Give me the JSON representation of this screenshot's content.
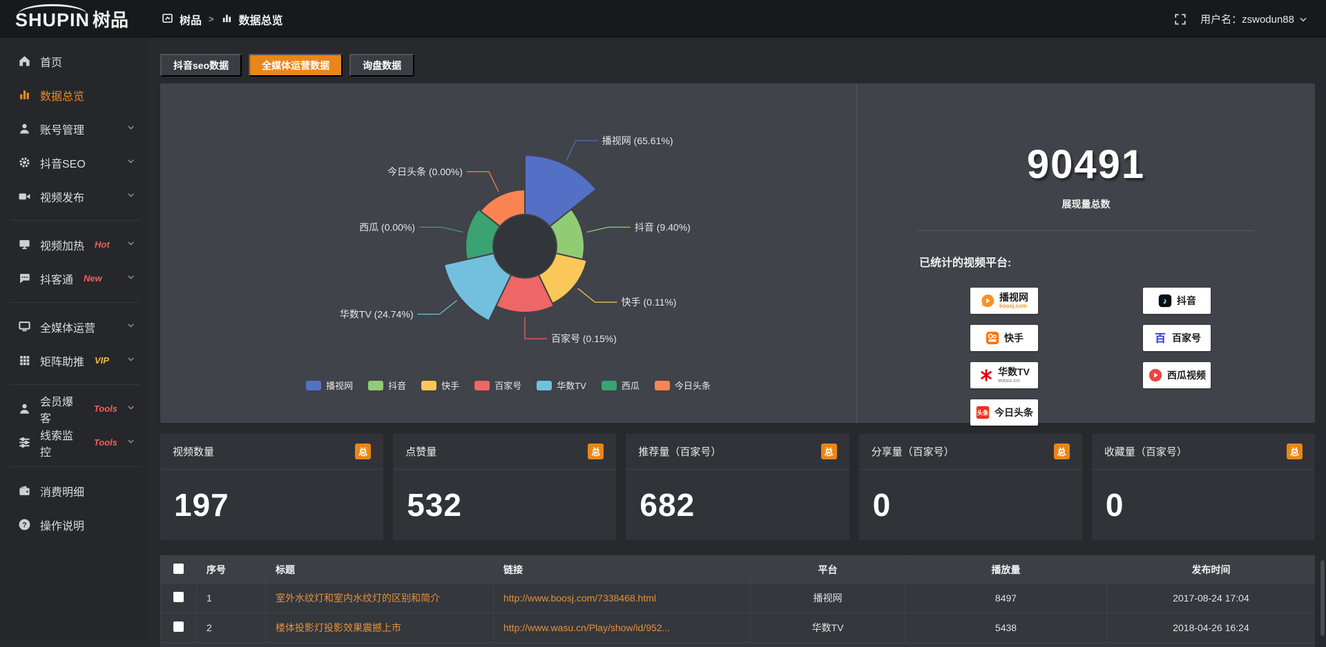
{
  "topbar": {
    "logo_en": "SHUPIN",
    "logo_cn": "树品",
    "breadcrumb_home": "树品",
    "breadcrumb_sep": ">",
    "breadcrumb_page": "数据总览",
    "username": "用户名：zswodun88"
  },
  "sidebar": {
    "items": [
      {
        "label": "首页",
        "icon": "home"
      },
      {
        "label": "数据总览",
        "icon": "chart",
        "active": true
      },
      {
        "label": "账号管理",
        "icon": "user",
        "chevron": true
      },
      {
        "label": "抖音SEO",
        "icon": "gear",
        "chevron": true
      },
      {
        "label": "视频发布",
        "icon": "video",
        "chevron": true,
        "divider_after": true
      },
      {
        "label": "视频加热",
        "icon": "monitor",
        "badge": "Hot",
        "badge_color": "#f25d5d",
        "chevron": true
      },
      {
        "label": "抖客通",
        "icon": "chat",
        "badge": "New",
        "badge_color": "#f25d5d",
        "chevron": true,
        "divider_after": true
      },
      {
        "label": "全媒体运营",
        "icon": "screen",
        "chevron": true
      },
      {
        "label": "矩阵助推",
        "icon": "grid",
        "badge": "VIP",
        "badge_color": "#e9bb43",
        "chevron": true,
        "divider_after": true
      },
      {
        "label": "会员爆客",
        "icon": "person",
        "badge": "Tools",
        "badge_color": "#f25d5d",
        "chevron": true
      },
      {
        "label": "线索监控",
        "icon": "sliders",
        "badge": "Tools",
        "badge_color": "#f25d5d",
        "chevron": true,
        "divider_after": true
      },
      {
        "label": "消费明细",
        "icon": "wallet"
      },
      {
        "label": "操作说明",
        "icon": "question"
      }
    ]
  },
  "tabs": [
    {
      "label": "抖音seo数据",
      "active": false
    },
    {
      "label": "全媒体运营数据",
      "active": true
    },
    {
      "label": "询盘数据",
      "active": false
    }
  ],
  "chart_data": {
    "type": "pie",
    "subtype": "nightingale-rose-donut",
    "legend_position": "bottom",
    "categories": [
      "播视网",
      "抖音",
      "快手",
      "百家号",
      "华数TV",
      "西瓜",
      "今日头条"
    ],
    "values": [
      65.61,
      9.4,
      0.11,
      0.15,
      24.74,
      0.0,
      0.0
    ],
    "pct_labels": [
      "65.61",
      "9.40",
      "0.11",
      "0.15",
      "24.74",
      "0.00",
      "0.00"
    ],
    "unit": "%",
    "colors": [
      "#5470c6",
      "#91cc75",
      "#fac858",
      "#ee6666",
      "#73c0de",
      "#3ba272",
      "#fc8452"
    ],
    "display_radii": [
      132,
      86,
      92,
      96,
      120,
      86,
      82
    ],
    "inner_radius": 46
  },
  "summary": {
    "total": "90491",
    "total_label": "展现量总数",
    "platforms_label": "已统计的视频平台:",
    "platforms_col1": [
      {
        "id": "boosj",
        "name": "播视网",
        "sub": "boosj.com",
        "color": "#ff8f1f",
        "sub_color": "#ff8f1f"
      },
      {
        "id": "kuaishou",
        "name": "快手",
        "color": "#ff7300"
      },
      {
        "id": "wasu",
        "name": "华数TV",
        "sub": "wasu.cn",
        "color": "#e60012",
        "sub_color": "#999999"
      },
      {
        "id": "toutiao",
        "name": "今日头条",
        "color": "#ed3321"
      }
    ],
    "platforms_col2": [
      {
        "id": "douyin",
        "name": "抖音",
        "color": "#0d0d14"
      },
      {
        "id": "baijiahao",
        "name": "百家号",
        "color": "#2932e1"
      },
      {
        "id": "xigua",
        "name": "西瓜视频",
        "color": "#f04142"
      }
    ]
  },
  "stat_cards": [
    {
      "label": "视频数量",
      "badge": "总",
      "value": "197"
    },
    {
      "label": "点赞量",
      "badge": "总",
      "value": "532"
    },
    {
      "label": "推荐量（百家号）",
      "badge": "总",
      "value": "682"
    },
    {
      "label": "分享量（百家号）",
      "badge": "总",
      "value": "0"
    },
    {
      "label": "收藏量（百家号）",
      "badge": "总",
      "value": "0"
    }
  ],
  "table": {
    "columns": [
      "序号",
      "标题",
      "链接",
      "平台",
      "播放量",
      "发布时间"
    ],
    "rows": [
      {
        "num": "1",
        "title": "室外水纹灯和室内水纹灯的区别和简介",
        "link": "http://www.boosj.com/7338468.html",
        "platform": "播视网",
        "plays": "8497",
        "time": "2017-08-24 17:04"
      },
      {
        "num": "2",
        "title": "楼体投影灯投影效果震撼上市",
        "link": "http://www.wasu.cn/Play/show/id/952...",
        "platform": "华数TV",
        "plays": "5438",
        "time": "2018-04-26 16:24"
      }
    ]
  },
  "colors": {
    "accent": "#e98619",
    "panel": "#404349",
    "hole": "#323539",
    "link": "#e2913f"
  }
}
